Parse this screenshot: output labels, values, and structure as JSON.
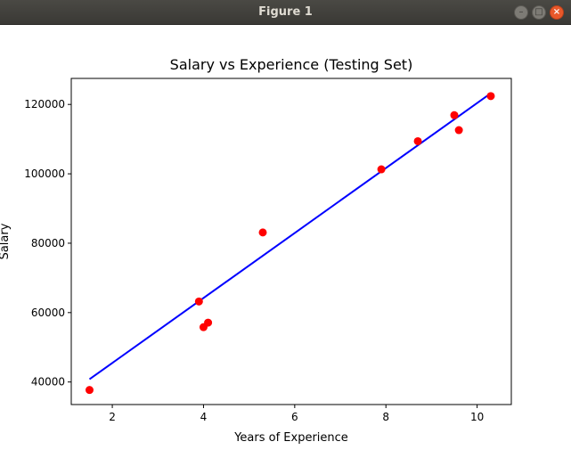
{
  "window": {
    "title": "Figure 1"
  },
  "chart_data": {
    "type": "scatter",
    "title": "Salary vs Experience (Testing Set)",
    "xlabel": "Years of Experience",
    "ylabel": "Salary",
    "xlim": [
      1.1,
      10.75
    ],
    "ylim": [
      33500,
      127500
    ],
    "xticks": [
      2,
      4,
      6,
      8,
      10
    ],
    "yticks": [
      40000,
      60000,
      80000,
      100000,
      120000
    ],
    "grid": false,
    "series": [
      {
        "kind": "scatter",
        "color": "#ff0000",
        "points": [
          [
            1.5,
            37700
          ],
          [
            3.9,
            63200
          ],
          [
            4.0,
            55800
          ],
          [
            4.1,
            57100
          ],
          [
            5.3,
            83100
          ],
          [
            7.9,
            101300
          ],
          [
            8.7,
            109400
          ],
          [
            9.5,
            116900
          ],
          [
            9.6,
            112600
          ],
          [
            10.3,
            122400
          ]
        ]
      },
      {
        "kind": "line",
        "color": "#0000ff",
        "points": [
          [
            1.5,
            40800
          ],
          [
            10.3,
            123200
          ]
        ]
      }
    ]
  }
}
